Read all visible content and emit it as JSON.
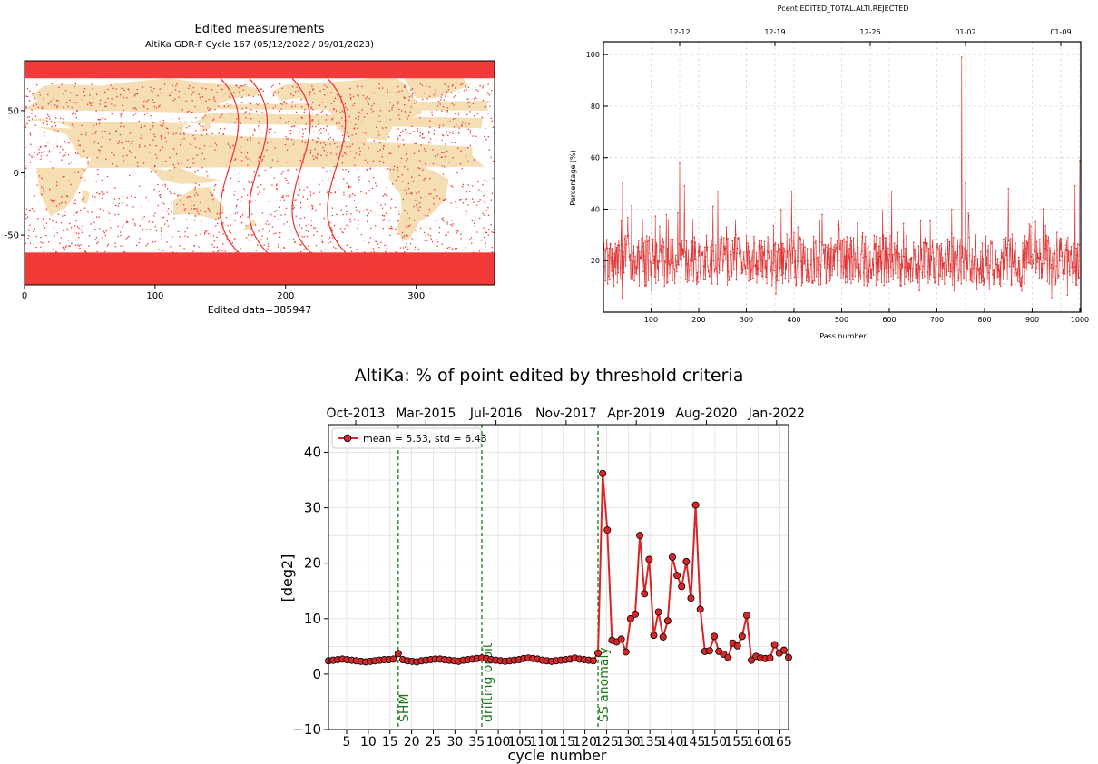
{
  "chart_data": [
    {
      "type": "map",
      "title": "Edited measurements",
      "subtitle": "AltiKa GDR-F Cycle 167 (05/12/2022 / 09/01/2023)",
      "xlabel": "Edited data=385947",
      "xlim": [
        0,
        360
      ],
      "ylim": [
        -90,
        90
      ],
      "x_ticks": [
        0,
        100,
        200,
        300
      ],
      "y_ticks": [
        50,
        0,
        -50
      ],
      "colors": {
        "land": "#f5deb3",
        "edited_points": "#f03030",
        "ocean": "#ffffff"
      }
    },
    {
      "type": "line",
      "title": "Pcent EDITED_TOTAL.ALTI.REJECTED",
      "xlabel": "Pass number",
      "ylabel": "Percentage (%)",
      "xlim": [
        0,
        1002
      ],
      "ylim": [
        0,
        105
      ],
      "x_ticks": [
        100,
        200,
        300,
        400,
        500,
        600,
        700,
        800,
        900,
        1000
      ],
      "y_ticks": [
        20,
        40,
        60,
        80,
        100
      ],
      "top_axis_ticks": [
        {
          "label": "12-12",
          "pass": 160
        },
        {
          "label": "12-19",
          "pass": 360
        },
        {
          "label": "12-26",
          "pass": 560
        },
        {
          "label": "01-02",
          "pass": 760
        },
        {
          "label": "01-09",
          "pass": 960
        }
      ],
      "grid": true,
      "color": "#e03030",
      "typical_range": [
        10,
        30
      ],
      "peaks": [
        {
          "x": 40,
          "y": 50
        },
        {
          "x": 160,
          "y": 58
        },
        {
          "x": 170,
          "y": 49
        },
        {
          "x": 240,
          "y": 47
        },
        {
          "x": 395,
          "y": 47
        },
        {
          "x": 605,
          "y": 47
        },
        {
          "x": 752,
          "y": 99
        },
        {
          "x": 760,
          "y": 50
        },
        {
          "x": 850,
          "y": 48
        },
        {
          "x": 990,
          "y": 49
        },
        {
          "x": 1000,
          "y": 59
        }
      ]
    },
    {
      "type": "line",
      "title": "AltiKa: % of point edited by threshold criteria",
      "xlabel": "cycle number",
      "ylabel": "[deg2]",
      "ylim": [
        -10,
        45
      ],
      "y_ticks": [
        -10,
        0,
        10,
        20,
        30,
        40
      ],
      "x_tick_labels": [
        "5",
        "10",
        "15",
        "20",
        "25",
        "30",
        "35",
        "100",
        "105",
        "110",
        "115",
        "120",
        "125",
        "130",
        "135",
        "140",
        "145",
        "150",
        "155",
        "160",
        "165"
      ],
      "top_axis_labels": [
        "Oct-2013",
        "Mar-2015",
        "Jul-2016",
        "Nov-2017",
        "Apr-2019",
        "Aug-2020",
        "Jan-2022"
      ],
      "grid": true,
      "legend": {
        "label": "mean = 5.53, std = 6.43",
        "position": "top-left"
      },
      "series": [
        {
          "color": "#d62728",
          "values": [
            2.4,
            2.5,
            2.6,
            2.7,
            2.6,
            2.5,
            2.4,
            2.3,
            2.2,
            2.3,
            2.4,
            2.5,
            2.6,
            2.6,
            2.7,
            3.7,
            2.6,
            2.4,
            2.3,
            2.2,
            2.4,
            2.5,
            2.6,
            2.7,
            2.7,
            2.6,
            2.5,
            2.4,
            2.3,
            2.5,
            2.6,
            2.7,
            2.8,
            2.9,
            2.8,
            2.6,
            2.5,
            2.4,
            2.3,
            2.4,
            2.5,
            2.6,
            2.8,
            2.9,
            2.8,
            2.7,
            2.5,
            2.4,
            2.3,
            2.4,
            2.5,
            2.6,
            2.7,
            2.9,
            2.7,
            2.6,
            2.5,
            2.4,
            3.8,
            36.2,
            26.0,
            6.1,
            5.8,
            6.3,
            4.0,
            10.0,
            10.8,
            25.0,
            14.5,
            20.7,
            7.0,
            11.2,
            6.7,
            9.6,
            21.1,
            17.8,
            15.8,
            20.3,
            13.7,
            30.5,
            11.7,
            4.1,
            4.2,
            6.8,
            4.1,
            3.6,
            3.0,
            5.6,
            5.1,
            6.8,
            10.6,
            2.5,
            3.2,
            2.9,
            2.8,
            2.9,
            5.3,
            3.8,
            4.3,
            3.0
          ]
        }
      ],
      "annotations": [
        {
          "label": "SHM",
          "index": 15,
          "color": "#1a7a1a"
        },
        {
          "label": "drifting orbit",
          "index": 33,
          "color": "#1a7a1a"
        },
        {
          "label": "SS anomaly",
          "index": 58,
          "color": "#1a7a1a"
        }
      ]
    }
  ]
}
